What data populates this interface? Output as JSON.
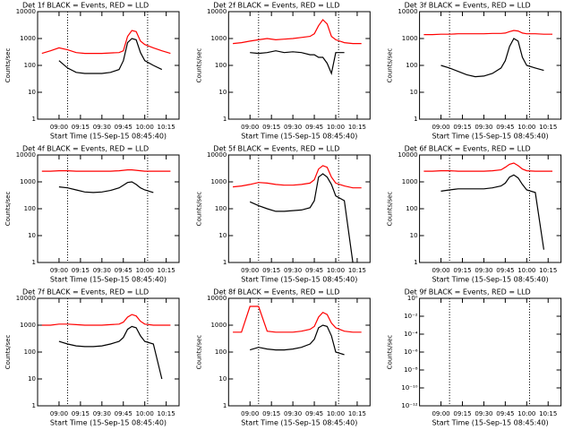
{
  "chart_data": [
    {
      "type": "line",
      "title": "Det 1f BLACK = Events, RED = LLD",
      "xlabel": "Start Time (15-Sep-15 08:45:40)",
      "ylabel": "Counts/sec",
      "log_y": true,
      "x": [
        528,
        534,
        540,
        546,
        552,
        558,
        564,
        570,
        576,
        582,
        585,
        588,
        591,
        594,
        597,
        600,
        606,
        612,
        618
      ],
      "xlim": [
        525,
        624
      ],
      "xticks": [
        {
          "value": 540,
          "label": "09:00"
        },
        {
          "value": 555,
          "label": "09:15"
        },
        {
          "value": 570,
          "label": "09:30"
        },
        {
          "value": 585,
          "label": "09:45"
        },
        {
          "value": 600,
          "label": "10:00"
        },
        {
          "value": 615,
          "label": "10:15"
        }
      ],
      "ylim": [
        1,
        10000
      ],
      "yticks": [
        1,
        10,
        100,
        1000,
        10000
      ],
      "vlines": [
        546,
        602
      ],
      "series": [
        {
          "color": "#ff0000",
          "values": [
            280,
            350,
            450,
            380,
            300,
            280,
            280,
            280,
            290,
            300,
            350,
            1200,
            2000,
            1800,
            800,
            600,
            450,
            350,
            280
          ]
        },
        {
          "color": "#000000",
          "values": [
            null,
            null,
            150,
            80,
            55,
            50,
            50,
            50,
            55,
            70,
            150,
            700,
            1000,
            900,
            300,
            150,
            100,
            70,
            null
          ]
        }
      ]
    },
    {
      "type": "line",
      "title": "Det 2f BLACK = Events, RED = LLD",
      "xlabel": "Start Time (15-Sep-15 08:45:40)",
      "ylabel": "Counts/sec",
      "log_y": true,
      "x": [
        528,
        534,
        540,
        546,
        552,
        558,
        564,
        570,
        576,
        582,
        585,
        588,
        591,
        594,
        597,
        600,
        606,
        612,
        618
      ],
      "xlim": [
        525,
        624
      ],
      "xticks": [
        {
          "value": 540,
          "label": "09:00"
        },
        {
          "value": 555,
          "label": "09:15"
        },
        {
          "value": 570,
          "label": "09:30"
        },
        {
          "value": 585,
          "label": "09:45"
        },
        {
          "value": 600,
          "label": "10:00"
        },
        {
          "value": 615,
          "label": "10:15"
        }
      ],
      "ylim": [
        1,
        10000
      ],
      "yticks": [
        1,
        10,
        100,
        1000,
        10000
      ],
      "vlines": [
        546,
        602
      ],
      "series": [
        {
          "color": "#ff0000",
          "values": [
            650,
            700,
            800,
            900,
            1000,
            900,
            950,
            1000,
            1100,
            1200,
            1500,
            3000,
            5000,
            3500,
            1200,
            900,
            700,
            650,
            650
          ]
        },
        {
          "color": "#000000",
          "values": [
            null,
            null,
            300,
            280,
            300,
            350,
            300,
            320,
            300,
            250,
            250,
            200,
            200,
            120,
            50,
            300,
            300,
            null,
            null
          ]
        }
      ]
    },
    {
      "type": "line",
      "title": "Det 3f BLACK = Events, RED = LLD",
      "xlabel": "Start Time (15-Sep-15 08:45:40)",
      "ylabel": "Counts/sec",
      "log_y": true,
      "x": [
        528,
        534,
        540,
        546,
        552,
        558,
        564,
        570,
        576,
        582,
        585,
        588,
        591,
        594,
        597,
        600,
        606,
        612,
        618
      ],
      "xlim": [
        525,
        624
      ],
      "xticks": [
        {
          "value": 540,
          "label": "09:00"
        },
        {
          "value": 555,
          "label": "09:15"
        },
        {
          "value": 570,
          "label": "09:30"
        },
        {
          "value": 585,
          "label": "09:45"
        },
        {
          "value": 600,
          "label": "10:00"
        },
        {
          "value": 615,
          "label": "10:15"
        }
      ],
      "ylim": [
        1,
        10000
      ],
      "yticks": [
        1,
        10,
        100,
        1000,
        10000
      ],
      "vlines": [
        546,
        602
      ],
      "series": [
        {
          "color": "#ff0000",
          "values": [
            1400,
            1400,
            1450,
            1450,
            1500,
            1500,
            1500,
            1500,
            1550,
            1550,
            1600,
            1800,
            2000,
            1900,
            1600,
            1500,
            1500,
            1450,
            1450
          ]
        },
        {
          "color": "#000000",
          "values": [
            null,
            null,
            100,
            80,
            60,
            45,
            38,
            40,
            50,
            80,
            150,
            500,
            1000,
            800,
            200,
            100,
            80,
            65,
            null
          ]
        }
      ]
    },
    {
      "type": "line",
      "title": "Det 4f BLACK = Events, RED = LLD",
      "xlabel": "Start Time (15-Sep-15 08:45:40)",
      "ylabel": "Counts/sec",
      "log_y": true,
      "x": [
        528,
        534,
        540,
        546,
        552,
        558,
        564,
        570,
        576,
        582,
        585,
        588,
        591,
        594,
        597,
        600,
        606,
        612,
        618
      ],
      "xlim": [
        525,
        624
      ],
      "xticks": [
        {
          "value": 540,
          "label": "09:00"
        },
        {
          "value": 555,
          "label": "09:15"
        },
        {
          "value": 570,
          "label": "09:30"
        },
        {
          "value": 585,
          "label": "09:45"
        },
        {
          "value": 600,
          "label": "10:00"
        },
        {
          "value": 615,
          "label": "10:15"
        }
      ],
      "ylim": [
        1,
        10000
      ],
      "yticks": [
        1,
        10,
        100,
        1000,
        10000
      ],
      "vlines": [
        546,
        602
      ],
      "series": [
        {
          "color": "#ff0000",
          "values": [
            2500,
            2500,
            2600,
            2600,
            2500,
            2500,
            2500,
            2500,
            2500,
            2600,
            2700,
            2800,
            2800,
            2700,
            2600,
            2500,
            2500,
            2500,
            2500
          ]
        },
        {
          "color": "#000000",
          "values": [
            null,
            null,
            650,
            600,
            500,
            420,
            400,
            420,
            480,
            600,
            750,
            950,
            1000,
            800,
            600,
            500,
            400,
            null,
            null
          ]
        }
      ]
    },
    {
      "type": "line",
      "title": "Det 5f BLACK = Events, RED = LLD",
      "xlabel": "Start Time (15-Sep-15 08:45:40)",
      "ylabel": "Counts/sec",
      "log_y": true,
      "x": [
        528,
        534,
        540,
        546,
        552,
        558,
        564,
        570,
        576,
        582,
        585,
        588,
        591,
        594,
        597,
        600,
        606,
        612,
        618
      ],
      "xlim": [
        525,
        624
      ],
      "xticks": [
        {
          "value": 540,
          "label": "09:00"
        },
        {
          "value": 555,
          "label": "09:15"
        },
        {
          "value": 570,
          "label": "09:30"
        },
        {
          "value": 585,
          "label": "09:45"
        },
        {
          "value": 600,
          "label": "10:00"
        },
        {
          "value": 615,
          "label": "10:15"
        }
      ],
      "ylim": [
        1,
        10000
      ],
      "yticks": [
        1,
        10,
        100,
        1000,
        10000
      ],
      "vlines": [
        546,
        602
      ],
      "series": [
        {
          "color": "#ff0000",
          "values": [
            650,
            700,
            800,
            950,
            900,
            800,
            750,
            750,
            800,
            900,
            1200,
            3000,
            4000,
            3500,
            1500,
            900,
            700,
            600,
            600
          ]
        },
        {
          "color": "#000000",
          "values": [
            null,
            null,
            180,
            130,
            100,
            80,
            80,
            85,
            90,
            110,
            200,
            1500,
            2000,
            1500,
            800,
            300,
            200,
            1,
            null
          ]
        }
      ]
    },
    {
      "type": "line",
      "title": "Det 6f BLACK = Events, RED = LLD",
      "xlabel": "Start Time (15-Sep-15 08:45:40)",
      "ylabel": "Counts/sec",
      "log_y": true,
      "x": [
        528,
        534,
        540,
        546,
        552,
        558,
        564,
        570,
        576,
        582,
        585,
        588,
        591,
        594,
        597,
        600,
        606,
        612,
        618
      ],
      "xlim": [
        525,
        624
      ],
      "xticks": [
        {
          "value": 540,
          "label": "09:00"
        },
        {
          "value": 555,
          "label": "09:15"
        },
        {
          "value": 570,
          "label": "09:30"
        },
        {
          "value": 585,
          "label": "09:45"
        },
        {
          "value": 600,
          "label": "10:00"
        },
        {
          "value": 615,
          "label": "10:15"
        }
      ],
      "ylim": [
        1,
        10000
      ],
      "yticks": [
        1,
        10,
        100,
        1000,
        10000
      ],
      "vlines": [
        546,
        602
      ],
      "series": [
        {
          "color": "#ff0000",
          "values": [
            2500,
            2500,
            2600,
            2600,
            2500,
            2500,
            2500,
            2500,
            2600,
            2800,
            3500,
            4500,
            5000,
            4000,
            3000,
            2600,
            2500,
            2500,
            2500
          ]
        },
        {
          "color": "#000000",
          "values": [
            null,
            null,
            450,
            500,
            550,
            550,
            550,
            550,
            600,
            700,
            900,
            1500,
            1800,
            1400,
            800,
            500,
            400,
            3,
            null
          ]
        }
      ]
    },
    {
      "type": "line",
      "title": "Det 7f BLACK = Events, RED = LLD",
      "xlabel": "Start Time (15-Sep-15 08:45:40)",
      "ylabel": "Counts/sec",
      "log_y": true,
      "x": [
        528,
        534,
        540,
        546,
        552,
        558,
        564,
        570,
        576,
        582,
        585,
        588,
        591,
        594,
        597,
        600,
        606,
        612,
        618
      ],
      "xlim": [
        525,
        624
      ],
      "xticks": [
        {
          "value": 540,
          "label": "09:00"
        },
        {
          "value": 555,
          "label": "09:15"
        },
        {
          "value": 570,
          "label": "09:30"
        },
        {
          "value": 585,
          "label": "09:45"
        },
        {
          "value": 600,
          "label": "10:00"
        },
        {
          "value": 615,
          "label": "10:15"
        }
      ],
      "ylim": [
        1,
        10000
      ],
      "yticks": [
        1,
        10,
        100,
        1000,
        10000
      ],
      "vlines": [
        546,
        602
      ],
      "series": [
        {
          "color": "#ff0000",
          "values": [
            1000,
            1000,
            1100,
            1100,
            1050,
            1000,
            1000,
            1000,
            1050,
            1100,
            1300,
            2000,
            2500,
            2200,
            1400,
            1100,
            1000,
            1000,
            1000
          ]
        },
        {
          "color": "#000000",
          "values": [
            null,
            null,
            250,
            200,
            170,
            160,
            160,
            170,
            200,
            250,
            350,
            700,
            900,
            800,
            400,
            250,
            200,
            10,
            null
          ]
        }
      ]
    },
    {
      "type": "line",
      "title": "Det 8f BLACK = Events, RED = LLD",
      "xlabel": "Start Time (15-Sep-15 08:45:40)",
      "ylabel": "Counts/sec",
      "log_y": true,
      "x": [
        528,
        534,
        540,
        546,
        552,
        558,
        564,
        570,
        576,
        582,
        585,
        588,
        591,
        594,
        597,
        600,
        606,
        612,
        618
      ],
      "xlim": [
        525,
        624
      ],
      "xticks": [
        {
          "value": 540,
          "label": "09:00"
        },
        {
          "value": 555,
          "label": "09:15"
        },
        {
          "value": 570,
          "label": "09:30"
        },
        {
          "value": 585,
          "label": "09:45"
        },
        {
          "value": 600,
          "label": "10:00"
        },
        {
          "value": 615,
          "label": "10:15"
        }
      ],
      "ylim": [
        1,
        10000
      ],
      "yticks": [
        1,
        10,
        100,
        1000,
        10000
      ],
      "vlines": [
        546,
        602
      ],
      "series": [
        {
          "color": "#ff0000",
          "values": [
            550,
            550,
            5000,
            5000,
            600,
            550,
            550,
            550,
            600,
            700,
            900,
            2000,
            3000,
            2500,
            1200,
            800,
            600,
            550,
            550
          ]
        },
        {
          "color": "#000000",
          "values": [
            null,
            null,
            120,
            150,
            130,
            120,
            120,
            130,
            150,
            200,
            300,
            800,
            1000,
            900,
            400,
            100,
            80,
            null,
            null
          ]
        }
      ]
    },
    {
      "type": "line",
      "title": "Det 9f BLACK = Events, RED = LLD",
      "xlabel": "Start Time (15-Sep-15 08:45:40)",
      "ylabel": "Counts/sec",
      "log_y": true,
      "xlim": [
        525,
        624
      ],
      "xticks": [
        {
          "value": 540,
          "label": "09:00"
        },
        {
          "value": 555,
          "label": "09:15"
        },
        {
          "value": 570,
          "label": "09:30"
        },
        {
          "value": 585,
          "label": "09:45"
        },
        {
          "value": 600,
          "label": "10:00"
        },
        {
          "value": 615,
          "label": "10:15"
        }
      ],
      "ylim": [
        1e-12,
        1
      ],
      "yticks": [
        {
          "value": 1e-12,
          "label": "10⁻¹²"
        },
        {
          "value": 1e-10,
          "label": "10⁻¹⁰"
        },
        {
          "value": 1e-08,
          "label": "10⁻⁸"
        },
        {
          "value": 1e-06,
          "label": "10⁻⁶"
        },
        {
          "value": 0.0001,
          "label": "10⁻⁴"
        },
        {
          "value": 0.01,
          "label": "10⁻²"
        },
        {
          "value": 1,
          "label": "10⁰"
        }
      ],
      "vlines": [
        546,
        602
      ],
      "series": []
    }
  ]
}
